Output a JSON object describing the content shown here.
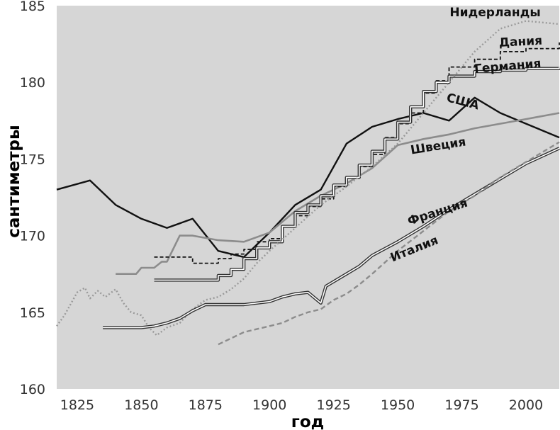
{
  "chart_data": {
    "type": "line",
    "title": "",
    "xlabel": "год",
    "ylabel": "сантиметры",
    "xlim": [
      1817,
      2013
    ],
    "ylim": [
      160,
      185
    ],
    "xticks": [
      1825,
      1850,
      1875,
      1900,
      1925,
      1950,
      1975,
      2000
    ],
    "yticks": [
      160,
      165,
      170,
      175,
      180,
      185
    ],
    "grid": false,
    "colors": {
      "plot_background": "#d6d6d6",
      "black": "#111111",
      "gray": "#8c8c8c",
      "dotted": "#9a9a9a"
    },
    "series": [
      {
        "name": "США",
        "style": "solid-black",
        "x": [
          1817,
          1830,
          1840,
          1850,
          1860,
          1870,
          1880,
          1890,
          1900,
          1910,
          1920,
          1930,
          1940,
          1950,
          1960,
          1970,
          1980,
          1990,
          2000,
          2013
        ],
        "y": [
          173.0,
          173.6,
          172.0,
          171.1,
          170.5,
          171.1,
          169.0,
          168.6,
          170.2,
          172.0,
          173.0,
          176.0,
          177.1,
          177.6,
          178.0,
          177.5,
          179.0,
          178.0,
          177.3,
          176.4
        ]
      },
      {
        "name": "Швеция",
        "style": "solid-gray",
        "x": [
          1840,
          1848,
          1850,
          1855,
          1858,
          1860,
          1865,
          1870,
          1880,
          1890,
          1900,
          1910,
          1920,
          1930,
          1940,
          1950,
          1960,
          1970,
          1980,
          1990,
          2000,
          2013
        ],
        "y": [
          167.5,
          167.5,
          167.9,
          167.9,
          168.3,
          168.3,
          170.0,
          170.0,
          169.7,
          169.6,
          170.2,
          171.6,
          172.6,
          173.4,
          174.4,
          175.9,
          176.3,
          176.6,
          177.0,
          177.3,
          177.6,
          178.0
        ]
      },
      {
        "name": "Дания",
        "style": "dashed-black",
        "x": [
          1855,
          1860,
          1870,
          1880,
          1885,
          1890,
          1895,
          1900,
          1905,
          1910,
          1915,
          1920,
          1925,
          1930,
          1935,
          1940,
          1945,
          1950,
          1955,
          1960,
          1965,
          1970,
          1980,
          1990,
          2000,
          2013
        ],
        "y": [
          168.6,
          168.6,
          168.2,
          168.5,
          168.8,
          169.1,
          169.6,
          169.8,
          170.6,
          171.3,
          171.9,
          172.4,
          173.2,
          173.8,
          174.5,
          175.3,
          176.4,
          177.3,
          178.0,
          179.3,
          180.1,
          181.0,
          181.5,
          182.0,
          182.2,
          182.6
        ]
      },
      {
        "name": "Германия",
        "style": "double-white",
        "x": [
          1855,
          1860,
          1870,
          1880,
          1885,
          1890,
          1895,
          1900,
          1905,
          1910,
          1915,
          1920,
          1925,
          1930,
          1935,
          1940,
          1945,
          1950,
          1955,
          1960,
          1965,
          1970,
          1980,
          1990,
          2000,
          2013
        ],
        "y": [
          167.1,
          167.1,
          167.1,
          167.4,
          167.8,
          168.5,
          169.2,
          169.6,
          170.6,
          171.5,
          172.0,
          172.6,
          173.3,
          173.8,
          174.6,
          175.5,
          176.3,
          177.4,
          178.4,
          179.4,
          180.0,
          180.4,
          180.7,
          180.8,
          180.9,
          181.0
        ]
      },
      {
        "name": "Нидерланды",
        "style": "dotted-gray",
        "x": [
          1817,
          1820,
          1825,
          1828,
          1830,
          1833,
          1836,
          1840,
          1843,
          1846,
          1850,
          1853,
          1856,
          1860,
          1865,
          1870,
          1875,
          1880,
          1885,
          1890,
          1895,
          1900,
          1910,
          1920,
          1930,
          1940,
          1950,
          1960,
          1970,
          1980,
          1990,
          2000,
          2013
        ],
        "y": [
          164.1,
          164.8,
          166.3,
          166.6,
          165.9,
          166.4,
          166.0,
          166.5,
          165.6,
          165.0,
          164.8,
          164.0,
          163.5,
          164.0,
          164.3,
          165.2,
          165.8,
          166.0,
          166.5,
          167.2,
          168.2,
          169.0,
          170.5,
          172.0,
          173.2,
          174.5,
          176.0,
          178.0,
          180.0,
          182.0,
          183.5,
          184.0,
          183.8
        ]
      },
      {
        "name": "Франция",
        "style": "double-white",
        "x": [
          1835,
          1840,
          1845,
          1850,
          1855,
          1860,
          1865,
          1870,
          1875,
          1880,
          1890,
          1900,
          1905,
          1910,
          1915,
          1920,
          1922,
          1925,
          1930,
          1935,
          1940,
          1950,
          1960,
          1970,
          1980,
          1990,
          2000,
          2013
        ],
        "y": [
          164.0,
          164.0,
          164.0,
          164.0,
          164.1,
          164.3,
          164.6,
          165.1,
          165.5,
          165.5,
          165.5,
          165.7,
          166.0,
          166.2,
          166.3,
          165.6,
          166.7,
          167.0,
          167.5,
          168.0,
          168.7,
          169.6,
          170.6,
          171.7,
          172.7,
          173.7,
          174.7,
          175.7
        ]
      },
      {
        "name": "Италия",
        "style": "dashed-gray",
        "x": [
          1880,
          1885,
          1890,
          1895,
          1900,
          1905,
          1910,
          1915,
          1920,
          1925,
          1930,
          1935,
          1940,
          1950,
          1960,
          1970,
          1980,
          1990,
          2000,
          2013
        ],
        "y": [
          162.9,
          163.3,
          163.7,
          163.9,
          164.1,
          164.3,
          164.7,
          165.0,
          165.2,
          165.8,
          166.2,
          166.8,
          167.5,
          169.0,
          170.3,
          171.6,
          172.6,
          173.8,
          174.8,
          176.1
        ]
      }
    ],
    "annotations": [
      {
        "text": "Нидерланды",
        "x": 1988,
        "y": 184.3,
        "angle": 0,
        "anchor": "middle"
      },
      {
        "text": "Дания",
        "x": 1998,
        "y": 182.4,
        "angle": -3,
        "anchor": "middle"
      },
      {
        "text": "Германия",
        "x": 1993,
        "y": 180.8,
        "angle": -5,
        "anchor": "middle"
      },
      {
        "text": "США",
        "x": 1975,
        "y": 178.5,
        "angle": 15,
        "anchor": "middle"
      },
      {
        "text": "Швеция",
        "x": 1966,
        "y": 175.6,
        "angle": -9,
        "anchor": "middle"
      },
      {
        "text": "Франция",
        "x": 1966,
        "y": 171.3,
        "angle": -18,
        "anchor": "middle"
      },
      {
        "text": "Италия",
        "x": 1957,
        "y": 168.9,
        "angle": -22,
        "anchor": "middle"
      }
    ]
  }
}
